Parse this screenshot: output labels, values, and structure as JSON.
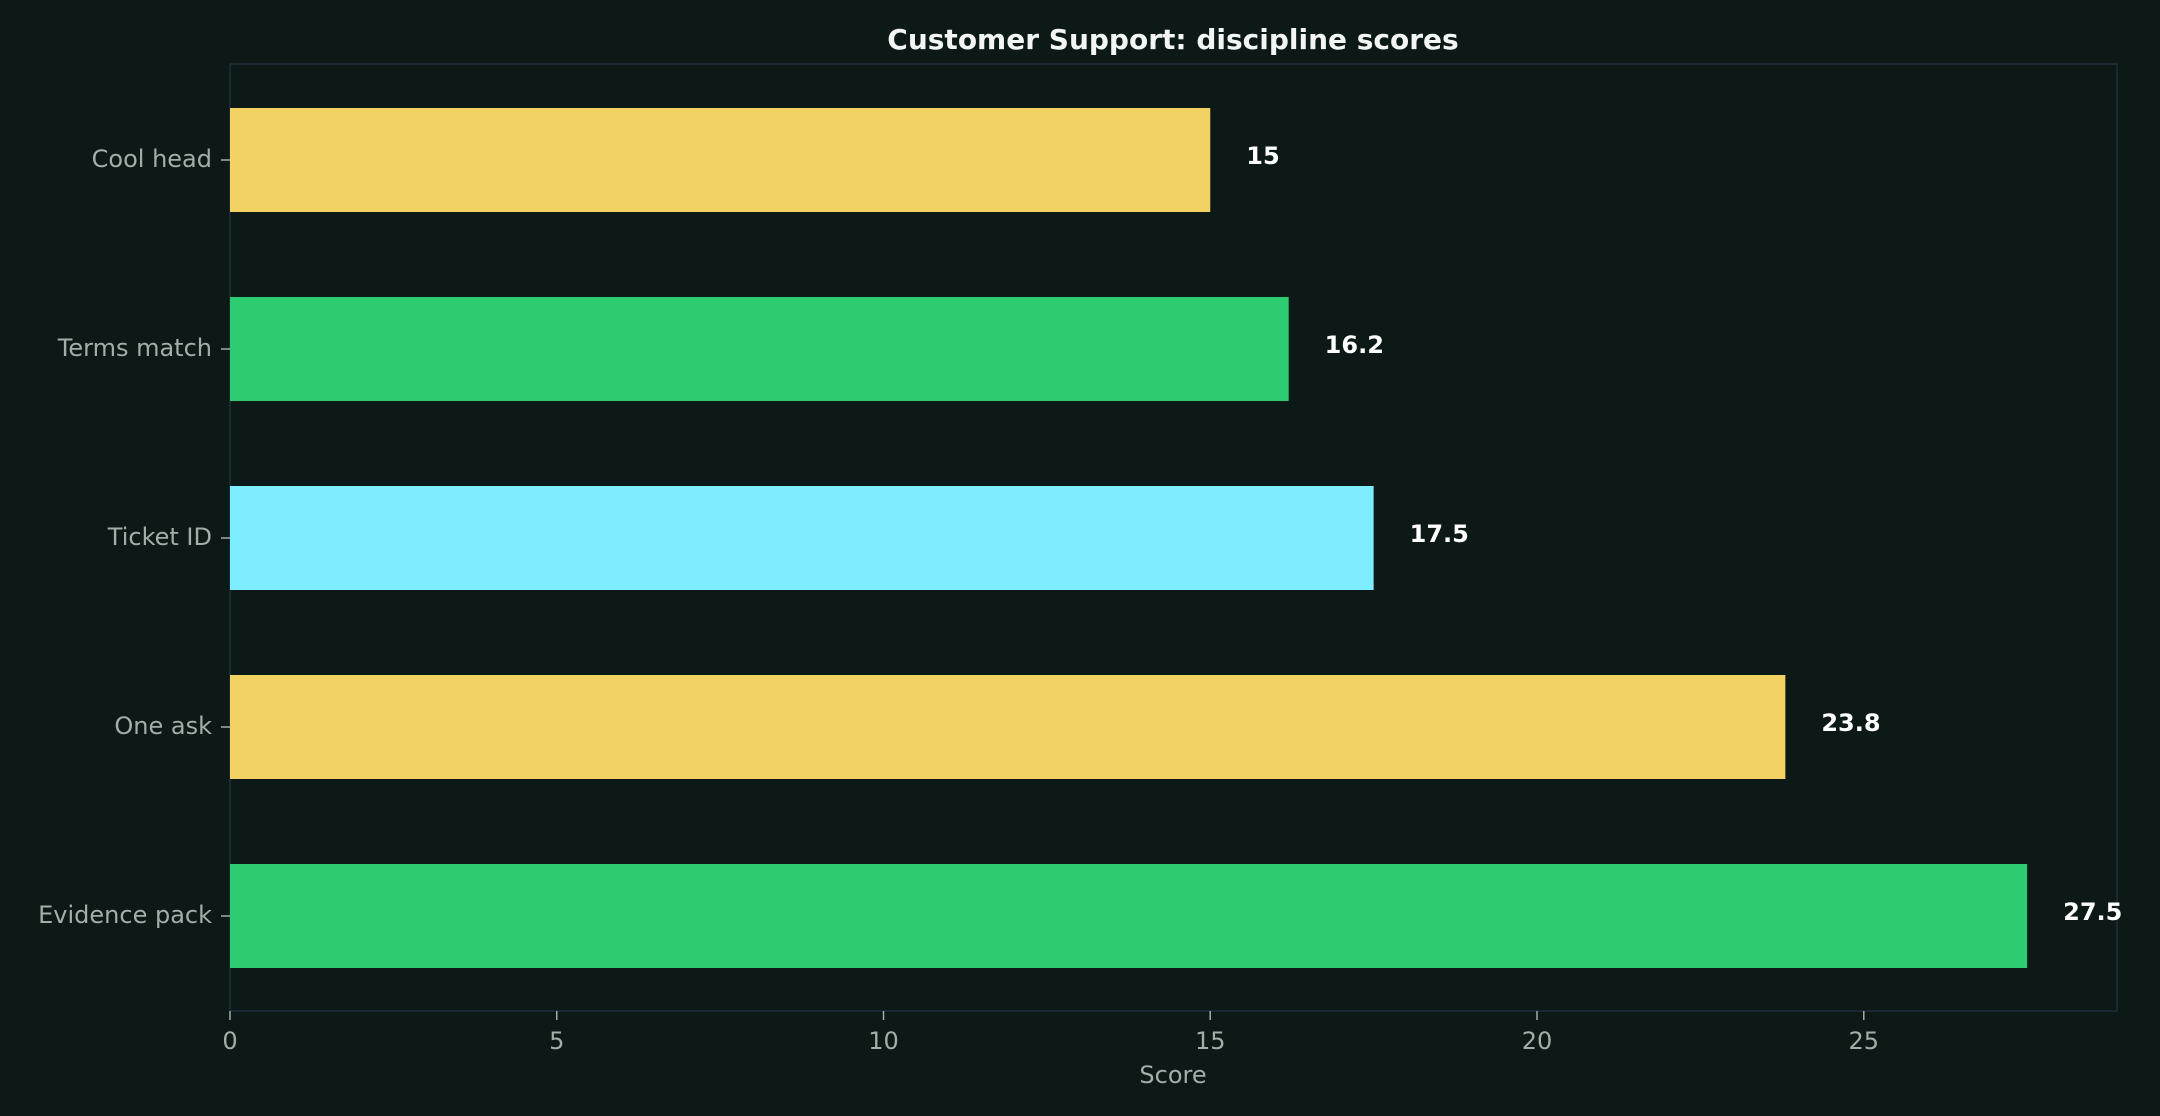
{
  "chart_data": {
    "type": "bar",
    "orientation": "horizontal",
    "title": "Customer Support: discipline scores",
    "xlabel": "Score",
    "ylabel": "",
    "categories": [
      "Cool head",
      "Terms match",
      "Ticket ID",
      "One ask",
      "Evidence pack"
    ],
    "values": [
      15,
      16.2,
      17.5,
      23.8,
      27.5
    ],
    "value_labels": [
      "15",
      "16.2",
      "17.5",
      "23.8",
      "27.5"
    ],
    "bar_colors": [
      "#f2d262",
      "#2ecc71",
      "#7eeeff",
      "#f2d262",
      "#2ecc71"
    ],
    "xlim": [
      0,
      28.875
    ],
    "xticks": [
      0,
      5,
      10,
      15,
      20,
      25
    ],
    "xtick_labels": [
      "0",
      "5",
      "10",
      "15",
      "20",
      "25"
    ],
    "grid": false,
    "legend": "none"
  }
}
